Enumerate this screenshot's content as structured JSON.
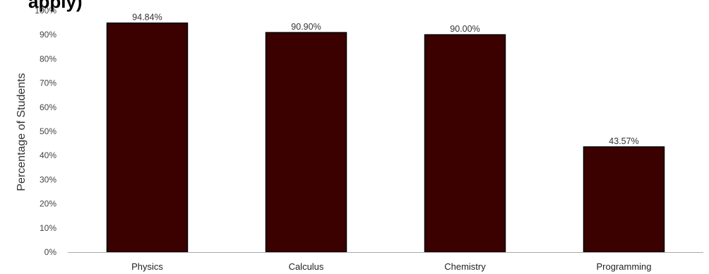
{
  "chart_data": {
    "type": "bar",
    "title": "apply)",
    "xlabel": "",
    "ylabel": "Percentage of Students",
    "categories": [
      "Physics",
      "Calculus",
      "Chemistry",
      "Programming"
    ],
    "values": [
      94.84,
      90.9,
      90.0,
      43.57
    ],
    "data_labels": [
      "94.84%",
      "90.90%",
      "90.00%",
      "43.57%"
    ],
    "ylim": [
      0,
      100
    ],
    "y_ticks": [
      0,
      10,
      20,
      30,
      40,
      50,
      60,
      70,
      80,
      90,
      100
    ],
    "y_tick_labels": [
      "0%",
      "10%",
      "20%",
      "30%",
      "40%",
      "50%",
      "60%",
      "70%",
      "80%",
      "90%",
      "100%"
    ],
    "grid": false,
    "legend": "none",
    "colors": {
      "bar": "#3b0000",
      "bar_outline": "#000000",
      "axis": "#aaaaaa"
    }
  }
}
